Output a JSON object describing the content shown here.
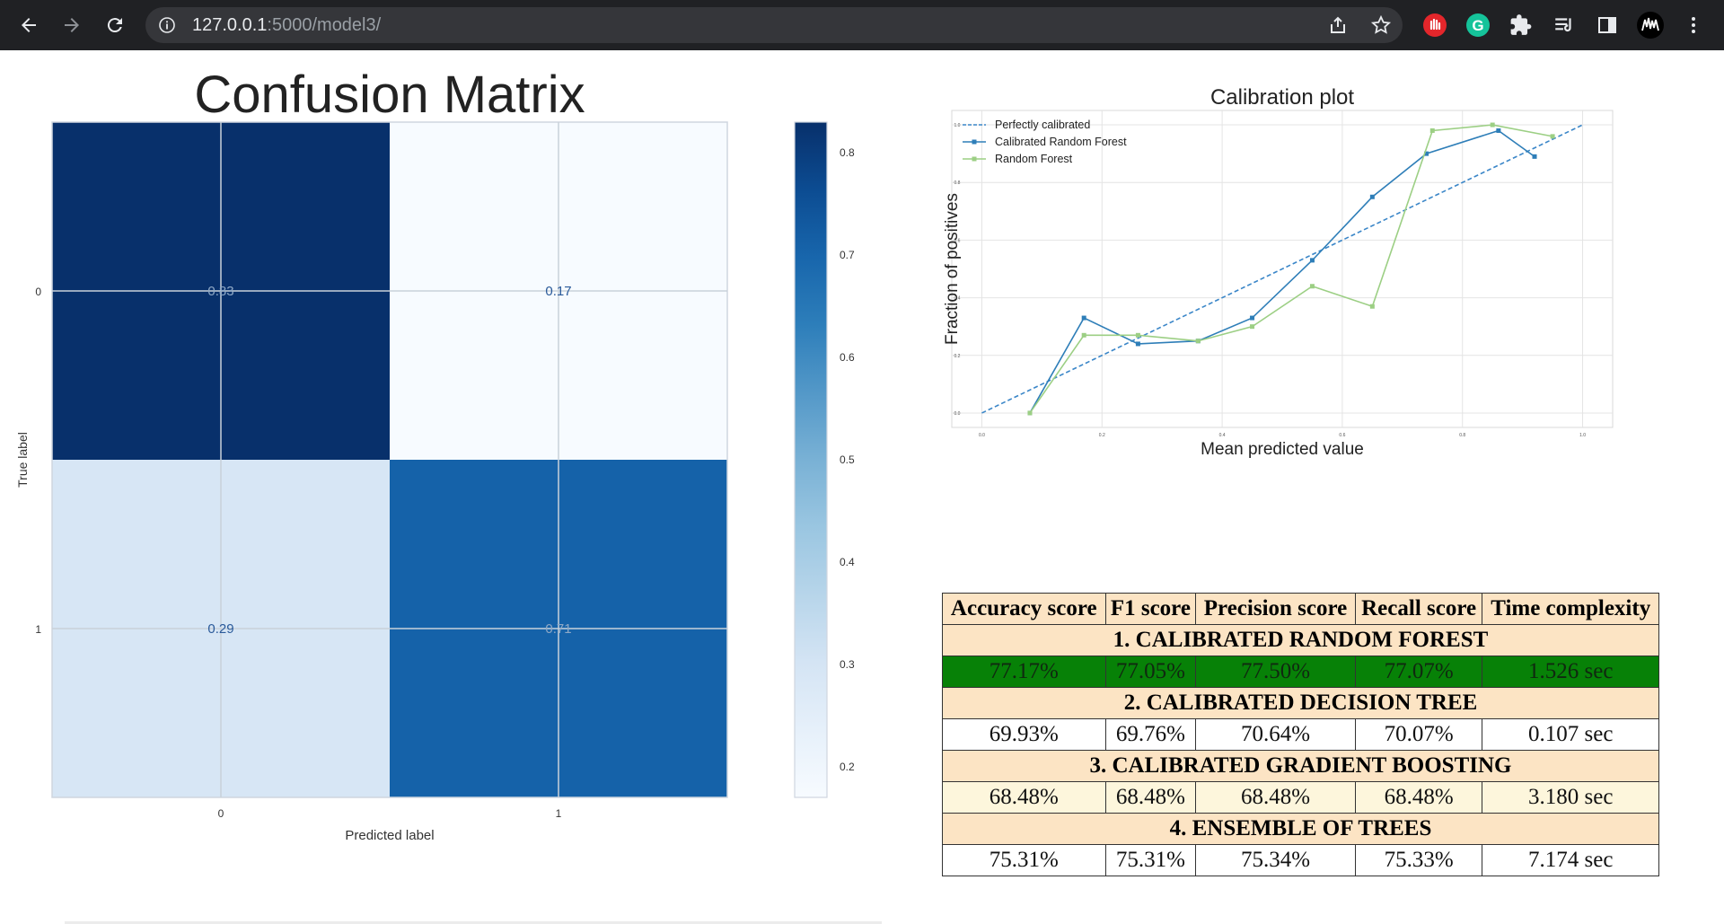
{
  "browser": {
    "url_host": "127.0.0.1",
    "url_path": ":5000/model3/",
    "icons": [
      "back-arrow-icon",
      "forward-arrow-icon",
      "reload-icon",
      "site-info-icon",
      "share-icon",
      "star-icon",
      "stop-hand-extension-icon",
      "grammarly-extension-icon",
      "puzzle-extensions-icon",
      "reading-list-icon",
      "side-panel-icon",
      "profile-avatar-icon",
      "more-vert-icon"
    ],
    "colors": {
      "toolbar": "#202124",
      "omnibox": "#35363a"
    }
  },
  "confusion_matrix": {
    "title": "Confusion Matrix",
    "xlabel": "Predicted label",
    "ylabel": "True label",
    "x_ticks": [
      "0",
      "1"
    ],
    "y_ticks": [
      "0",
      "1"
    ],
    "values": [
      [
        0.83,
        0.17
      ],
      [
        0.29,
        0.71
      ]
    ],
    "colorbar_ticks": [
      "0.8",
      "0.7",
      "0.6",
      "0.5",
      "0.4",
      "0.3",
      "0.2"
    ]
  },
  "chart_data": [
    {
      "type": "heatmap",
      "title": "Confusion Matrix",
      "xlabel": "Predicted label",
      "ylabel": "True label",
      "x_categories": [
        "0",
        "1"
      ],
      "y_categories": [
        "0",
        "1"
      ],
      "values": [
        [
          0.83,
          0.17
        ],
        [
          0.29,
          0.71
        ]
      ],
      "colormap": "Blues",
      "colorbar_range": [
        0.17,
        0.83
      ],
      "colorbar_ticks": [
        0.8,
        0.7,
        0.6,
        0.5,
        0.4,
        0.3,
        0.2
      ],
      "grid": true
    },
    {
      "type": "line",
      "title": "Calibration plot",
      "xlabel": "Mean predicted value",
      "ylabel": "Fraction of positives",
      "xlim": [
        -0.05,
        1.05
      ],
      "ylim": [
        -0.05,
        1.05
      ],
      "x_ticks": [
        "0.0",
        "0.2",
        "0.4",
        "0.6",
        "0.8",
        "1.0"
      ],
      "y_ticks": [
        "0.0",
        "0.2",
        "0.4",
        "0.6",
        "0.8",
        "1.0"
      ],
      "grid": true,
      "legend_position": "top-left",
      "series": [
        {
          "name": "Perfectly calibrated",
          "style": "dashed",
          "color": "#3a86c8",
          "x": [
            0.0,
            1.0
          ],
          "y": [
            0.0,
            1.0
          ]
        },
        {
          "name": "Calibrated Random Forest",
          "marker": "square",
          "color": "#2e7eb8",
          "x": [
            0.08,
            0.17,
            0.26,
            0.36,
            0.45,
            0.55,
            0.65,
            0.74,
            0.86,
            0.92
          ],
          "y": [
            0.0,
            0.33,
            0.24,
            0.25,
            0.33,
            0.53,
            0.75,
            0.9,
            0.98,
            0.89
          ]
        },
        {
          "name": "Random Forest",
          "marker": "square",
          "color": "#9ccf84",
          "x": [
            0.08,
            0.17,
            0.26,
            0.36,
            0.45,
            0.55,
            0.65,
            0.75,
            0.85,
            0.95
          ],
          "y": [
            0.0,
            0.27,
            0.27,
            0.25,
            0.3,
            0.44,
            0.37,
            0.98,
            1.0,
            0.96
          ]
        }
      ]
    }
  ],
  "metrics_table": {
    "headers": [
      "Accuracy score",
      "F1 score",
      "Precision score",
      "Recall score",
      "Time complexity"
    ],
    "models": [
      {
        "title": "1. CALIBRATED RANDOM FOREST",
        "values": [
          "77.17%",
          "77.05%",
          "77.50%",
          "77.07%",
          "1.526 sec"
        ],
        "row_color": "#078107"
      },
      {
        "title": "2. CALIBRATED DECISION TREE",
        "values": [
          "69.93%",
          "69.76%",
          "70.64%",
          "70.07%",
          "0.107 sec"
        ],
        "row_color": "#ffffff"
      },
      {
        "title": "3. CALIBRATED GRADIENT BOOSTING",
        "values": [
          "68.48%",
          "68.48%",
          "68.48%",
          "68.48%",
          "3.180 sec"
        ],
        "row_color": "#fdf6dc"
      },
      {
        "title": "4. ENSEMBLE OF TREES",
        "values": [
          "75.31%",
          "75.31%",
          "75.34%",
          "75.33%",
          "7.174 sec"
        ],
        "row_color": "#ffffff"
      }
    ],
    "section_color": "#fce4c4"
  }
}
